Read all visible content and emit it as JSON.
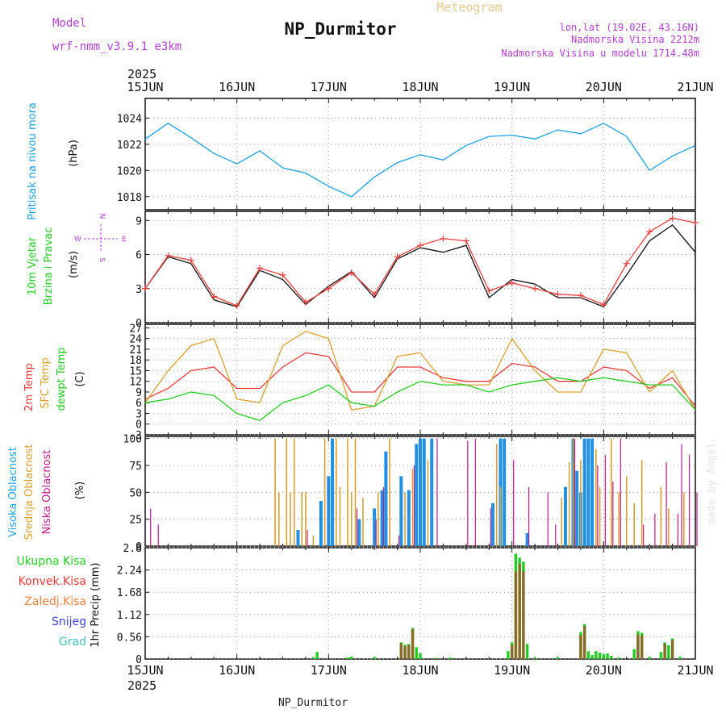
{
  "header": {
    "model_label": "Model",
    "model_name": "wrf-nmm_v3.9.1 e3km",
    "title": "NP_Durmitor",
    "subtitle": "Meteogram",
    "lonlat": "lon,lat (19.02E, 43.16N)",
    "altitude": "Nadmorska Visina 2212m",
    "model_altitude": "Nadmorska Visina u modelu 1714.48m",
    "year_top": "2025",
    "year_bottom": "2025",
    "footer": "NP_Durmitor",
    "watermark": "made by Angel"
  },
  "colors": {
    "pressure": "#1ca0e0",
    "temp2m": "#e83a3a",
    "sfc": "#d8a030",
    "dew": "#22cc22",
    "high_cloud": "#2090e0",
    "mid_cloud": "#d8a030",
    "low_cloud": "#c01888",
    "precip_total": "#22cc22",
    "precip_conv": "#e83a3a",
    "precip_frozen": "#f08040",
    "snow": "#4040e0",
    "grad": "#40c0c0",
    "purple": "#b040d0"
  },
  "chart_data": {
    "type": "meteogram",
    "x_ticks": [
      "15JUN",
      "16JUN",
      "17JUN",
      "18JUN",
      "19JUN",
      "20JUN",
      "21JUN"
    ],
    "panels": [
      {
        "id": "pressure",
        "type": "line",
        "ylabel_lines": [
          "Pritisak na nivou mora"
        ],
        "unit": "(hPa)",
        "ylim": [
          1017,
          1025.5
        ],
        "yticks": [
          1018,
          1020,
          1022,
          1024
        ],
        "x_hours": [
          0,
          6,
          12,
          18,
          24,
          30,
          36,
          42,
          48,
          54,
          60,
          66,
          72,
          78,
          84,
          90,
          96,
          102,
          108,
          114,
          120,
          126,
          132,
          138,
          144
        ],
        "series": [
          {
            "name": "Pritisak",
            "values": [
              1022.4,
              1023.6,
              1022.5,
              1021.3,
              1020.5,
              1021.5,
              1020.2,
              1019.8,
              1018.8,
              1018.0,
              1019.5,
              1020.6,
              1021.2,
              1020.8,
              1021.9,
              1022.6,
              1022.7,
              1022.4,
              1023.1,
              1022.8,
              1023.6,
              1022.6,
              1020.0,
              1021.1,
              1021.9
            ]
          }
        ]
      },
      {
        "id": "wind",
        "type": "line",
        "ylabel_lines": [
          "10m Vjetar",
          "Brzina i Pravac"
        ],
        "unit": "(m/s)",
        "ylim": [
          0,
          9.8
        ],
        "yticks": [
          0,
          3,
          6,
          9
        ],
        "direction_legend": [
          "W",
          "E",
          "N",
          "S"
        ],
        "x_hours": [
          0,
          6,
          12,
          18,
          24,
          30,
          36,
          42,
          48,
          54,
          60,
          66,
          72,
          78,
          84,
          90,
          96,
          102,
          108,
          114,
          120,
          126,
          132,
          138,
          144
        ],
        "series": [
          {
            "name": "Brzina",
            "values": [
              3.0,
              5.8,
              5.2,
              2.0,
              1.4,
              4.6,
              3.8,
              1.6,
              3.2,
              4.5,
              2.2,
              5.6,
              6.6,
              6.2,
              6.8,
              2.2,
              3.8,
              3.4,
              2.2,
              2.2,
              1.4,
              4.2,
              7.2,
              8.6,
              6.2
            ]
          },
          {
            "name": "Udari",
            "values": [
              3.0,
              5.9,
              5.5,
              2.3,
              1.5,
              4.8,
              4.2,
              1.8,
              3.0,
              4.4,
              2.5,
              5.8,
              6.8,
              7.4,
              7.2,
              2.8,
              3.5,
              3.0,
              2.5,
              2.4,
              1.6,
              5.2,
              8.0,
              9.2,
              8.8
            ]
          }
        ]
      },
      {
        "id": "temperature",
        "type": "line",
        "ylabel_lines": [
          "2m Temp",
          "SFC Temp",
          "dewpt Temp"
        ],
        "unit": "(C)",
        "ylim": [
          -3,
          28
        ],
        "yticks": [
          -3,
          0,
          3,
          6,
          9,
          12,
          15,
          18,
          21,
          24,
          27
        ],
        "x_hours": [
          0,
          6,
          12,
          18,
          24,
          30,
          36,
          42,
          48,
          54,
          60,
          66,
          72,
          78,
          84,
          90,
          96,
          102,
          108,
          114,
          120,
          126,
          132,
          138,
          144
        ],
        "series": [
          {
            "name": "2m Temp",
            "values": [
              7,
              10,
              15,
              16,
              10,
              10,
              16,
              20,
              19,
              9,
              9,
              16,
              16,
              13,
              12,
              12,
              17,
              16,
              12,
              12,
              16,
              15,
              10,
              13,
              5
            ]
          },
          {
            "name": "SFC Temp",
            "values": [
              6,
              15,
              22,
              24,
              7,
              6,
              22,
              26,
              24,
              4,
              5,
              19,
              20,
              12,
              11,
              11,
              24,
              15,
              9,
              9,
              21,
              20,
              9,
              15,
              4
            ]
          },
          {
            "name": "dewpt Temp",
            "values": [
              6,
              7,
              9,
              8,
              3,
              1,
              6,
              8,
              11,
              6,
              5,
              9,
              12,
              11,
              11,
              9,
              11,
              12,
              13,
              12,
              13,
              12,
              11,
              11,
              4
            ]
          }
        ]
      },
      {
        "id": "clouds",
        "type": "bar",
        "ylabel_lines": [
          "Visoka Oblacnost",
          "Srednja Oblacnost",
          "Niska Oblacnost"
        ],
        "unit": "(%)",
        "ylim": [
          0,
          102
        ],
        "yticks": [
          0,
          25,
          50,
          75,
          100
        ],
        "series": [
          {
            "name": "Visoka Oblacnost",
            "points": [
              [
                40,
                15
              ],
              [
                46,
                42
              ],
              [
                48,
                65
              ],
              [
                49,
                100
              ],
              [
                56,
                25
              ],
              [
                60,
                35
              ],
              [
                62,
                52
              ],
              [
                63,
                88
              ],
              [
                67,
                65
              ],
              [
                69,
                52
              ],
              [
                71,
                95
              ],
              [
                72,
                100
              ],
              [
                73,
                100
              ],
              [
                75,
                100
              ],
              [
                91,
                40
              ],
              [
                93,
                100
              ],
              [
                94,
                100
              ],
              [
                100,
                12
              ],
              [
                110,
                55
              ],
              [
                112,
                100
              ],
              [
                113,
                70
              ],
              [
                114,
                50
              ],
              [
                115,
                100
              ],
              [
                116,
                100
              ],
              [
                117,
                100
              ]
            ]
          },
          {
            "name": "Srednja Oblacnost",
            "points": [
              [
                34,
                100
              ],
              [
                35,
                50
              ],
              [
                37,
                100
              ],
              [
                38,
                50
              ],
              [
                39,
                100
              ],
              [
                41,
                50
              ],
              [
                42,
                50
              ],
              [
                44,
                10
              ],
              [
                47,
                100
              ],
              [
                50,
                100
              ],
              [
                51,
                55
              ],
              [
                53,
                100
              ],
              [
                54,
                50
              ],
              [
                55,
                100
              ],
              [
                57,
                45
              ],
              [
                61,
                50
              ],
              [
                64,
                100
              ],
              [
                68,
                50
              ],
              [
                70,
                72
              ],
              [
                74,
                80
              ],
              [
                92,
                95
              ],
              [
                93,
                55
              ],
              [
                109,
                45
              ],
              [
                111,
                78
              ],
              [
                112,
                100
              ],
              [
                114,
                80
              ],
              [
                118,
                90
              ],
              [
                119,
                55
              ],
              [
                122,
                100
              ],
              [
                124,
                50
              ],
              [
                126,
                65
              ],
              [
                128,
                40
              ],
              [
                130,
                80
              ],
              [
                135,
                55
              ],
              [
                137,
                35
              ],
              [
                141,
                50
              ]
            ]
          },
          {
            "name": "Niska Oblacnost",
            "points": [
              [
                1,
                35
              ],
              [
                3,
                20
              ],
              [
                42,
                15
              ],
              [
                55,
                35
              ],
              [
                60,
                25
              ],
              [
                62,
                55
              ],
              [
                66,
                10
              ],
              [
                70,
                75
              ],
              [
                76,
                100
              ],
              [
                84,
                98
              ],
              [
                86,
                100
              ],
              [
                90,
                35
              ],
              [
                96,
                80
              ],
              [
                100,
                55
              ],
              [
                105,
                50
              ],
              [
                107,
                20
              ],
              [
                112,
                100
              ],
              [
                118,
                75
              ],
              [
                120,
                85
              ],
              [
                122,
                60
              ],
              [
                124,
                100
              ],
              [
                130,
                20
              ],
              [
                133,
                30
              ],
              [
                136,
                78
              ],
              [
                139,
                30
              ],
              [
                140,
                95
              ],
              [
                142,
                85
              ],
              [
                144,
                50
              ]
            ]
          }
        ]
      },
      {
        "id": "precip",
        "type": "bar",
        "ylabel_lines": [
          "1hr Precip (mm)"
        ],
        "unit": "",
        "legend": [
          "Ukupna Kisa",
          "Konvek.Kisa",
          "Zaledj.Kisa",
          "Snijeg",
          "Grad"
        ],
        "ylim": [
          0,
          2.8
        ],
        "yticks": [
          0,
          0.56,
          1.12,
          1.68,
          2.24,
          2.8
        ],
        "ytick_labels": [
          "0",
          "0.56",
          "1.12",
          "1.68",
          "2.24",
          "2.8"
        ],
        "series": [
          {
            "name": "Ukupna Kisa",
            "points": [
              [
                44,
                0.05
              ],
              [
                45,
                0.18
              ],
              [
                53,
                0.04
              ],
              [
                54,
                0.06
              ],
              [
                60,
                0.05
              ],
              [
                67,
                0.42
              ],
              [
                68,
                0.36
              ],
              [
                69,
                0.38
              ],
              [
                70,
                0.78
              ],
              [
                71,
                0.3
              ],
              [
                72,
                0.15
              ],
              [
                76,
                0.03
              ],
              [
                80,
                0.04
              ],
              [
                95,
                0.2
              ],
              [
                96,
                0.42
              ],
              [
                97,
                2.65
              ],
              [
                98,
                2.55
              ],
              [
                99,
                2.45
              ],
              [
                100,
                0.38
              ],
              [
                102,
                0.03
              ],
              [
                108,
                0.05
              ],
              [
                114,
                0.68
              ],
              [
                115,
                0.88
              ],
              [
                116,
                0.2
              ],
              [
                117,
                0.1
              ],
              [
                118,
                0.2
              ],
              [
                119,
                0.16
              ],
              [
                120,
                0.12
              ],
              [
                121,
                0.14
              ],
              [
                122,
                0.08
              ],
              [
                124,
                0.04
              ],
              [
                128,
                0.25
              ],
              [
                129,
                0.7
              ],
              [
                130,
                0.66
              ],
              [
                132,
                0.05
              ],
              [
                135,
                0.18
              ],
              [
                136,
                0.42
              ],
              [
                137,
                0.35
              ],
              [
                138,
                0.52
              ],
              [
                140,
                0.06
              ]
            ]
          },
          {
            "name": "Konvek.Kisa",
            "points": [
              [
                67,
                0.4
              ],
              [
                68,
                0.32
              ],
              [
                69,
                0.35
              ],
              [
                70,
                0.75
              ],
              [
                96,
                0.35
              ],
              [
                97,
                2.2
              ],
              [
                98,
                2.4
              ],
              [
                99,
                2.2
              ],
              [
                114,
                0.6
              ],
              [
                115,
                0.82
              ],
              [
                129,
                0.62
              ],
              [
                130,
                0.6
              ],
              [
                136,
                0.38
              ],
              [
                138,
                0.48
              ]
            ]
          }
        ]
      }
    ]
  }
}
